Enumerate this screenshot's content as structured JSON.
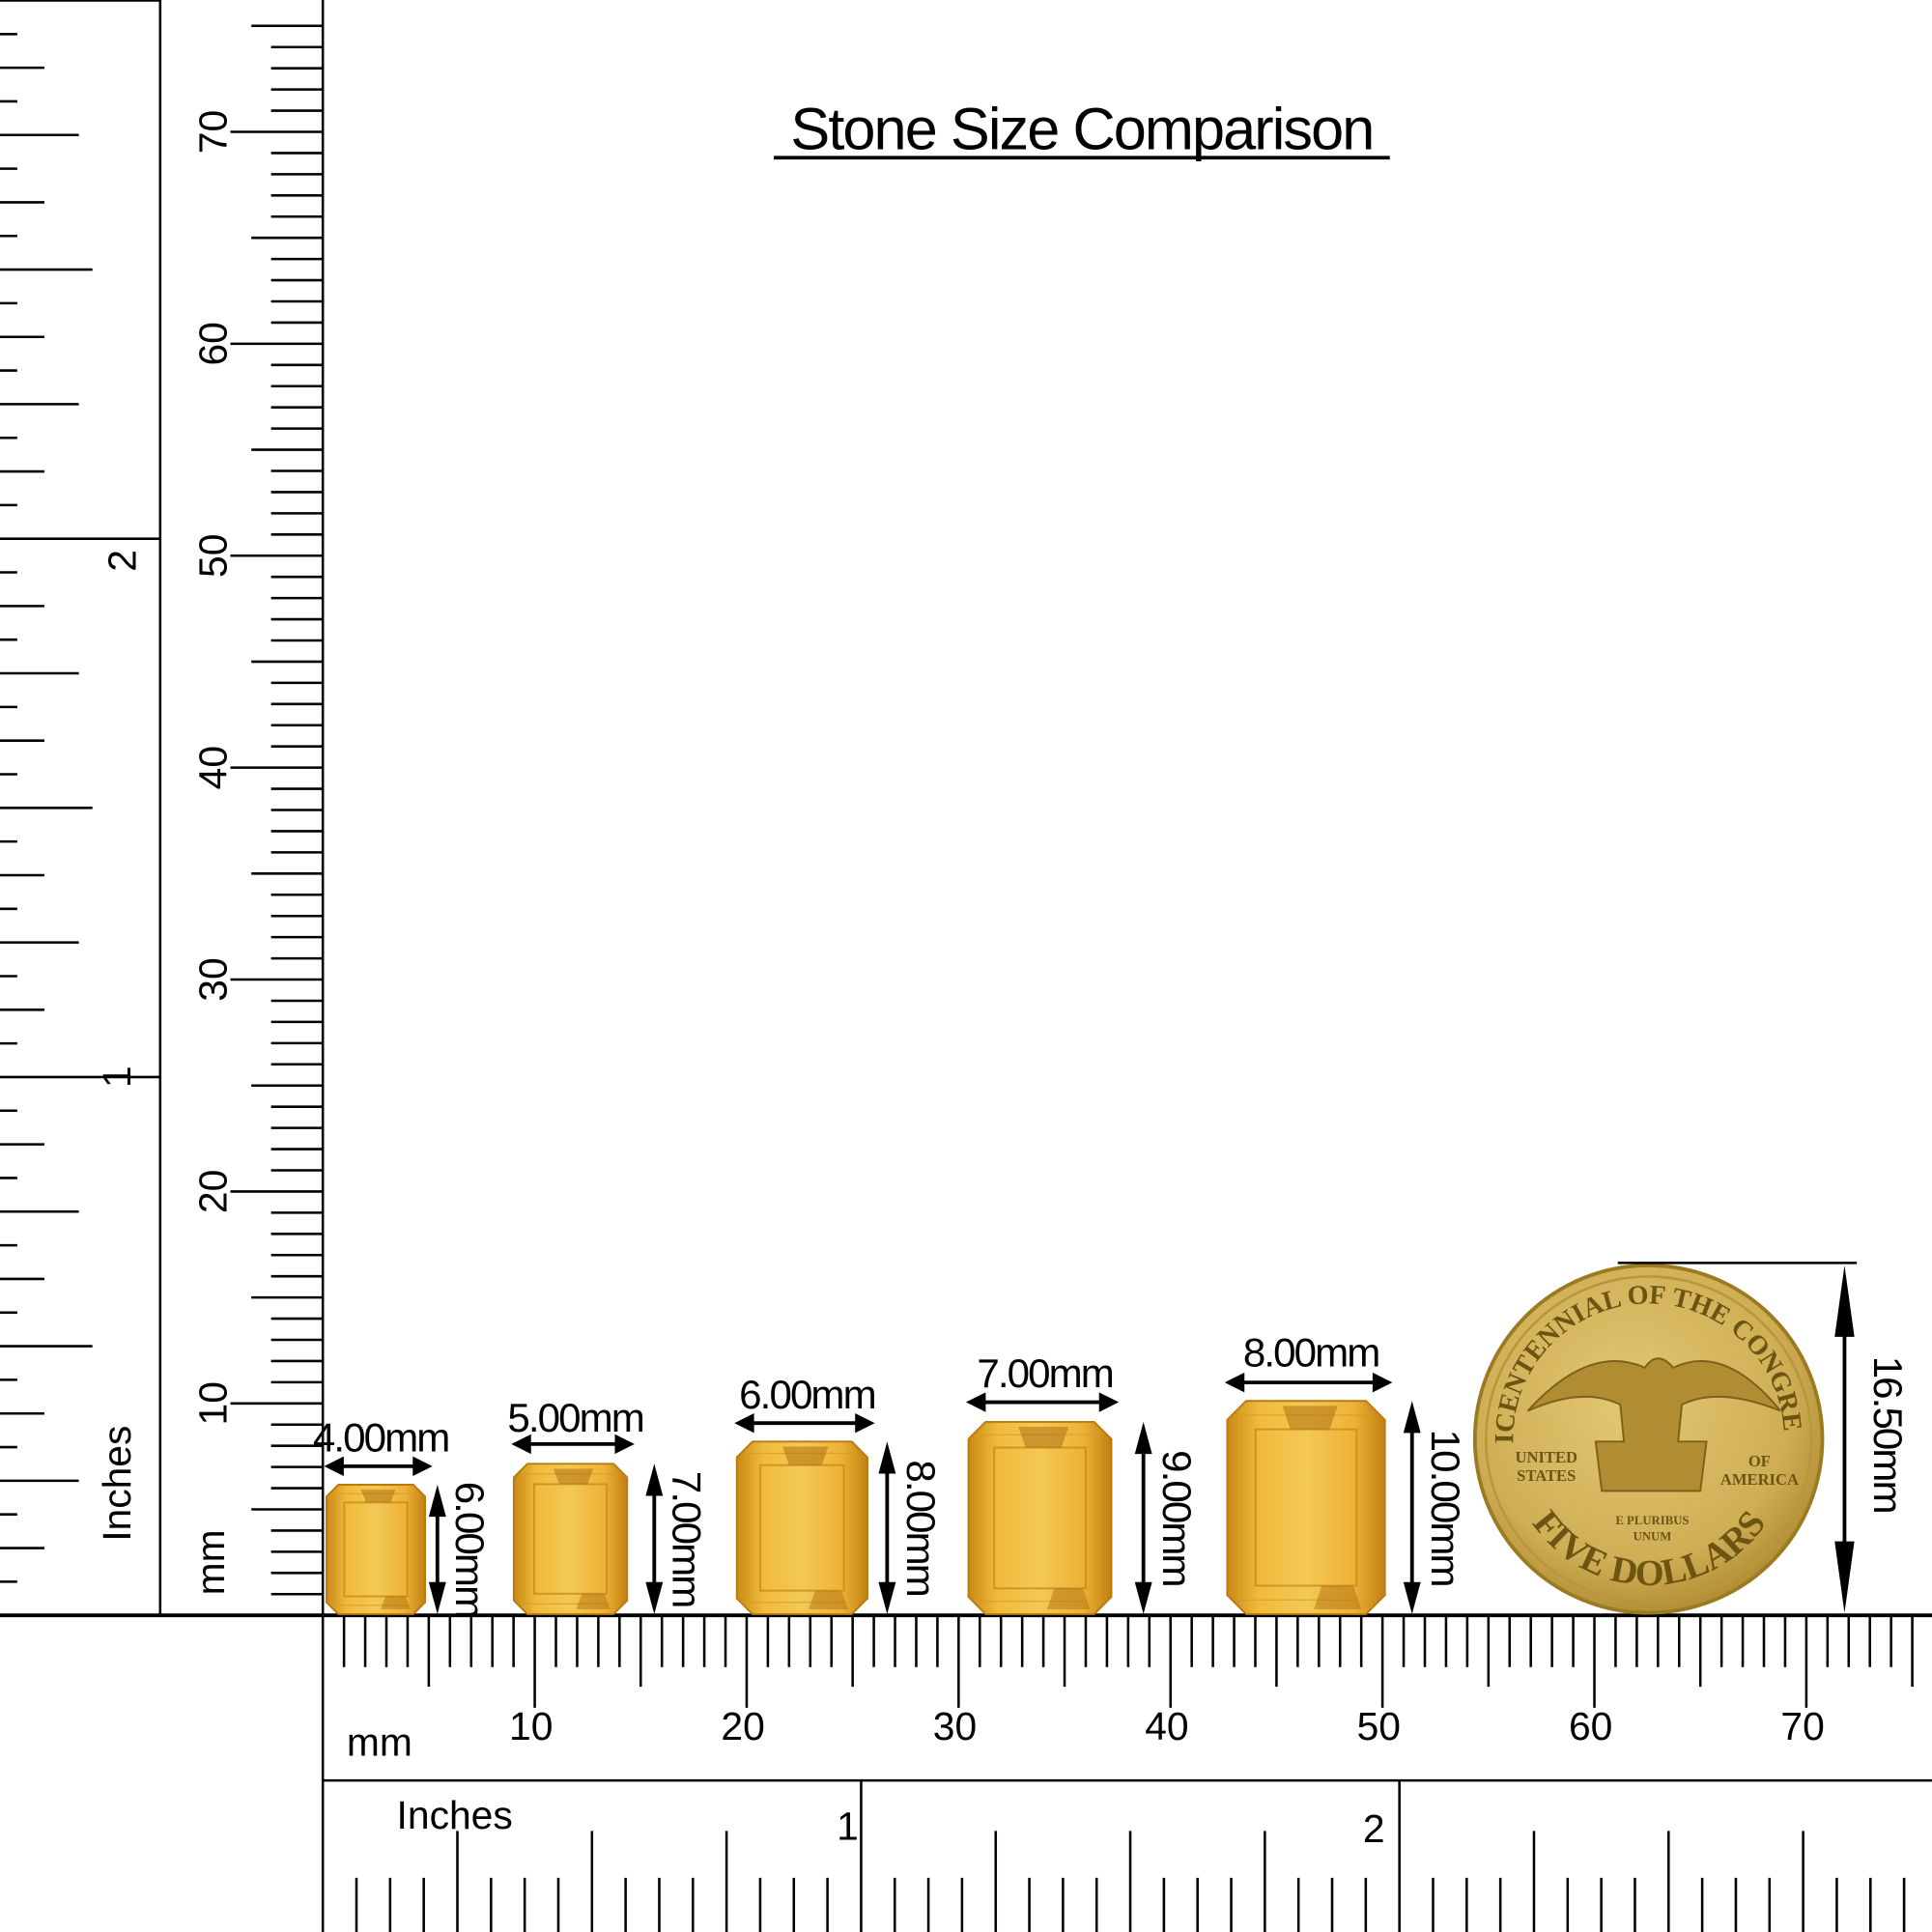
{
  "title": "Stone Size Comparison",
  "units": {
    "mm": "mm",
    "inches": "Inches"
  },
  "mm_scale": {
    "labels": [
      "10",
      "20",
      "30",
      "40",
      "50",
      "60",
      "70"
    ],
    "max": 75
  },
  "inch_scale": {
    "labels": [
      "1",
      "2"
    ]
  },
  "stones": [
    {
      "width_label": "4.00mm",
      "height_label": "6.00mm",
      "width_mm": 4,
      "height_mm": 6
    },
    {
      "width_label": "5.00mm",
      "height_label": "7.00mm",
      "width_mm": 5,
      "height_mm": 7
    },
    {
      "width_label": "6.00mm",
      "height_label": "8.00mm",
      "width_mm": 6,
      "height_mm": 8
    },
    {
      "width_label": "7.00mm",
      "height_label": "9.00mm",
      "width_mm": 7,
      "height_mm": 9
    },
    {
      "width_label": "8.00mm",
      "height_label": "10.00mm",
      "width_mm": 8,
      "height_mm": 10
    }
  ],
  "coin": {
    "diameter_label": "16.50mm",
    "diameter_mm": 16.5,
    "legend_top": "BICENTENNIAL OF THE CONGRESS",
    "legend_bottom": "FIVE DOLLARS",
    "left": [
      "UNITED",
      "STATES"
    ],
    "right": [
      "OF",
      "AMERICA"
    ],
    "motto": [
      "E PLURIBUS",
      "UNUM"
    ]
  },
  "colors": {
    "stone": "#e8a92c",
    "stone_dark": "#b97a10",
    "coin": "#d4b155",
    "coin_dark": "#9c7a22"
  }
}
